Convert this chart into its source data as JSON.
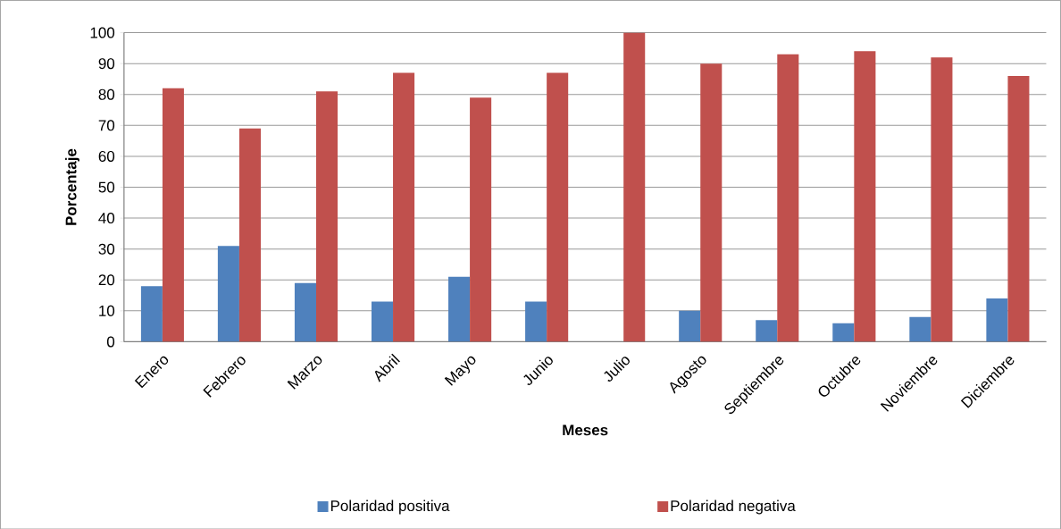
{
  "chart_data": {
    "type": "bar",
    "xlabel": "Meses",
    "ylabel": "Porcentaje",
    "categories": [
      "Enero",
      "Febrero",
      "Marzo",
      "Abril",
      "Mayo",
      "Junio",
      "Julio",
      "Agosto",
      "Septiembre",
      "Octubre",
      "Noviembre",
      "Diciembre"
    ],
    "series": [
      {
        "name": "Polaridad positiva",
        "color": "#4f81bd",
        "values": [
          18,
          31,
          19,
          13,
          21,
          13,
          0,
          10,
          7,
          6,
          8,
          14
        ]
      },
      {
        "name": "Polaridad negativa",
        "color": "#c0504d",
        "values": [
          82,
          69,
          81,
          87,
          79,
          87,
          100,
          90,
          93,
          94,
          92,
          86
        ]
      }
    ],
    "ylim": [
      0,
      100
    ],
    "yticks": [
      0,
      10,
      20,
      30,
      40,
      50,
      60,
      70,
      80,
      90,
      100
    ],
    "grid": "y",
    "legend": "bottom"
  }
}
